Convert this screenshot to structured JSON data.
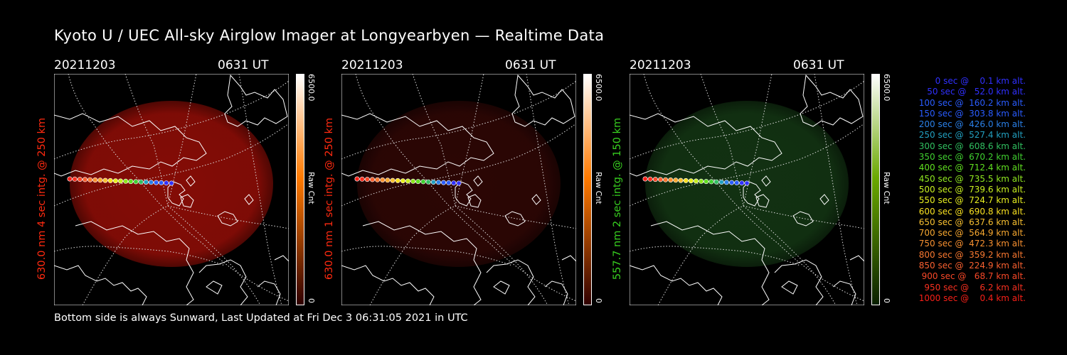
{
  "title": "Kyoto U / UEC All-sky Airglow Imager at Longyearbyen — Realtime Data",
  "footer": "Bottom side is always Sunward, Last Updated at Fri Dec  3 06:31:05 2021 in UTC",
  "panels": [
    {
      "date": "20211203",
      "time": "0631 UT",
      "side_label": "630.0 nm 4 sec intg. @ 250 km",
      "label_color": "#ff2a10",
      "cbar_max": "6500.0",
      "cbar_min": "0",
      "cbar_unit": "Raw Cnt",
      "cbar_top": "#ffffff",
      "cbar_mid": "#ff7a00",
      "cbar_bottom": "#300000",
      "glow_color": "#b01008",
      "glow_intensity": 0.75
    },
    {
      "date": "20211203",
      "time": "0631 UT",
      "side_label": "630.0 nm 1 sec intg. @ 250 km",
      "label_color": "#ff2a10",
      "cbar_max": "6500.0",
      "cbar_min": "0",
      "cbar_unit": "Raw Cnt",
      "cbar_top": "#ffffff",
      "cbar_mid": "#ff7a00",
      "cbar_bottom": "#300000",
      "glow_color": "#3a0806",
      "glow_intensity": 0.75
    },
    {
      "date": "20211203",
      "time": "0631 UT",
      "side_label": "557.7 nm 2 sec intg. @ 150 km",
      "label_color": "#38d020",
      "cbar_max": "6500.0",
      "cbar_min": "0",
      "cbar_unit": "Raw Cnt",
      "cbar_top": "#ffffff",
      "cbar_mid": "#6aa800",
      "cbar_bottom": "#0a2000",
      "glow_color": "#153a15",
      "glow_intensity": 0.85
    }
  ],
  "legend": [
    {
      "text": "   0 sec @    0.1 km alt.",
      "color": "#3030ff"
    },
    {
      "text": "  50 sec @   52.0 km alt.",
      "color": "#3030ff"
    },
    {
      "text": " 100 sec @  160.2 km alt.",
      "color": "#2a5cff"
    },
    {
      "text": " 150 sec @  303.8 km alt.",
      "color": "#2a5cff"
    },
    {
      "text": " 200 sec @  426.0 km alt.",
      "color": "#2a80e8"
    },
    {
      "text": " 250 sec @  527.4 km alt.",
      "color": "#22a0c0"
    },
    {
      "text": " 300 sec @  608.6 km alt.",
      "color": "#30c060"
    },
    {
      "text": " 350 sec @  670.2 km alt.",
      "color": "#40d030"
    },
    {
      "text": " 400 sec @  712.4 km alt.",
      "color": "#60e020"
    },
    {
      "text": " 450 sec @  735.5 km alt.",
      "color": "#90e820"
    },
    {
      "text": " 500 sec @  739.6 km alt.",
      "color": "#c8f020"
    },
    {
      "text": " 550 sec @  724.7 km alt.",
      "color": "#e8f020"
    },
    {
      "text": " 600 sec @  690.8 km alt.",
      "color": "#f8e020"
    },
    {
      "text": " 650 sec @  637.6 km alt.",
      "color": "#f8c030"
    },
    {
      "text": " 700 sec @  564.9 km alt.",
      "color": "#f8a830"
    },
    {
      "text": " 750 sec @  472.3 km alt.",
      "color": "#f89030"
    },
    {
      "text": " 800 sec @  359.2 km alt.",
      "color": "#f87830"
    },
    {
      "text": " 850 sec @  224.9 km alt.",
      "color": "#f86030"
    },
    {
      "text": " 900 sec @   68.7 km alt.",
      "color": "#f84828"
    },
    {
      "text": " 950 sec @    6.2 km alt.",
      "color": "#f83020"
    },
    {
      "text": "1000 sec @    0.4 km alt.",
      "color": "#f82018"
    }
  ]
}
